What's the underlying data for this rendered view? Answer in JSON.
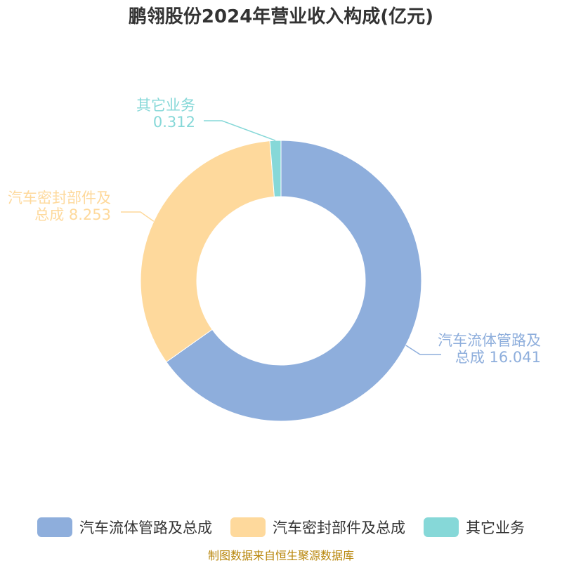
{
  "chart_data": {
    "type": "pie",
    "title": "鹏翎股份2024年营业收入构成(亿元)",
    "categories": [
      "汽车流体管路及总成",
      "汽车密封部件及总成",
      "其它业务"
    ],
    "values": [
      16.041,
      8.253,
      0.312
    ],
    "label_lines": [
      [
        "汽车流体管路及",
        "总成 16.041"
      ],
      [
        "汽车密封部件及",
        "总成 8.253"
      ],
      [
        "其它业务",
        "0.312"
      ]
    ],
    "colors": [
      "#8eaedc",
      "#fed99c",
      "#86d8d8"
    ],
    "donut": true,
    "legend_position": "bottom"
  },
  "source": "制图数据来自恒生聚源数据库"
}
